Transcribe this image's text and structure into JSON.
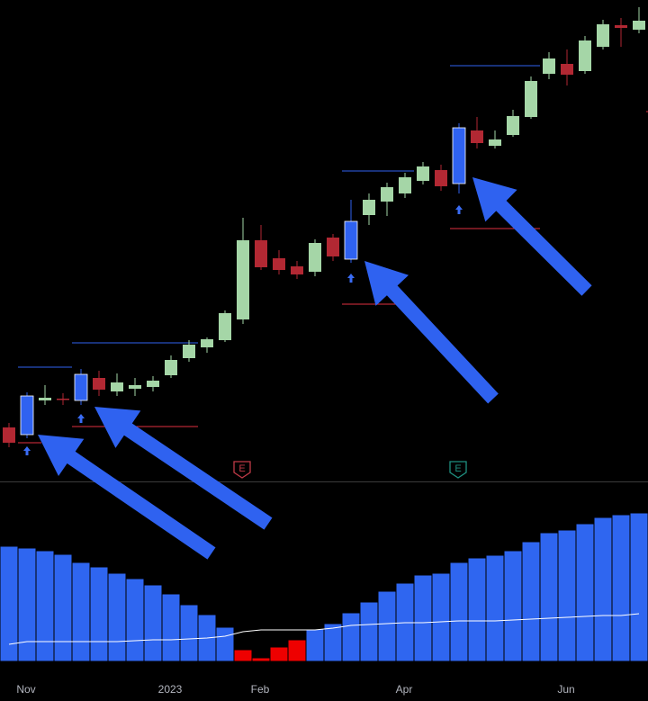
{
  "chart_data": [
    {
      "type": "candlestick",
      "open": [
        65,
        57,
        95,
        97,
        95,
        120,
        105,
        108,
        110,
        123,
        142,
        154,
        162,
        185,
        273,
        253,
        244,
        238,
        276,
        252,
        301,
        316,
        325,
        339,
        351,
        336,
        395,
        378,
        390,
        410,
        458,
        469,
        461,
        488,
        512,
        507
      ],
      "high": [
        70,
        104,
        112,
        103,
        130,
        128,
        125,
        120,
        122,
        145,
        162,
        165,
        195,
        298,
        290,
        262,
        250,
        274,
        280,
        318,
        325,
        337,
        348,
        360,
        357,
        403,
        410,
        395,
        418,
        455,
        482,
        485,
        500,
        518,
        520,
        532
      ],
      "low": [
        43,
        53,
        90,
        90,
        90,
        100,
        100,
        100,
        105,
        120,
        138,
        148,
        160,
        180,
        240,
        235,
        230,
        233,
        250,
        248,
        290,
        300,
        320,
        335,
        328,
        325,
        375,
        375,
        388,
        408,
        452,
        445,
        458,
        485,
        488,
        503
      ],
      "close": [
        48,
        100,
        98,
        96,
        124,
        107,
        115,
        112,
        117,
        140,
        157,
        163,
        192,
        273,
        243,
        240,
        235,
        270,
        255,
        294,
        318,
        332,
        343,
        355,
        333,
        398,
        381,
        385,
        411,
        450,
        475,
        457,
        495,
        513,
        509,
        517
      ],
      "colors": [
        "#b22833",
        "#2f62f0",
        "#a5d6a7",
        "#b22833",
        "#2f62f0",
        "#b22833",
        "#a5d6a7",
        "#a5d6a7",
        "#a5d6a7",
        "#a5d6a7",
        "#a5d6a7",
        "#a5d6a7",
        "#a5d6a7",
        "#a5d6a7",
        "#b22833",
        "#b22833",
        "#b22833",
        "#a5d6a7",
        "#b22833",
        "#2f62f0",
        "#a5d6a7",
        "#a5d6a7",
        "#a5d6a7",
        "#a5d6a7",
        "#b22833",
        "#2f62f0",
        "#b22833",
        "#a5d6a7",
        "#a5d6a7",
        "#a5d6a7",
        "#a5d6a7",
        "#b22833",
        "#a5d6a7",
        "#a5d6a7",
        "#b22833",
        "#a5d6a7"
      ],
      "levels": [
        {
          "color": "#2f62f0",
          "from": 0.5,
          "to": 3.5,
          "value": 132
        },
        {
          "color": "#2f62f0",
          "from": 3.5,
          "to": 10.5,
          "value": 159
        },
        {
          "color": "#e03040",
          "from": 0.5,
          "to": 1.8,
          "value": 48
        },
        {
          "color": "#e03040",
          "from": 3.5,
          "to": 10.5,
          "value": 66
        },
        {
          "color": "#2f62f0",
          "from": 18.5,
          "to": 22.5,
          "value": 350
        },
        {
          "color": "#e03040",
          "from": 18.5,
          "to": 21.5,
          "value": 202
        },
        {
          "color": "#2f62f0",
          "from": 24.5,
          "to": 29.5,
          "value": 467
        },
        {
          "color": "#e03040",
          "from": 24.5,
          "to": 29.5,
          "value": 286
        },
        {
          "color": "#e03040",
          "from": 35.4,
          "to": 35.5,
          "value": 416
        }
      ],
      "earnings": [
        {
          "label": "E",
          "color": "#c03a47"
        },
        {
          "label": "E",
          "color": "#1f9080"
        }
      ],
      "ylim": [
        0,
        540
      ]
    },
    {
      "type": "bar",
      "categories": [
        null,
        "Nov",
        null,
        null,
        null,
        null,
        null,
        null,
        null,
        "2023",
        null,
        null,
        null,
        null,
        "Feb",
        null,
        null,
        null,
        null,
        null,
        null,
        null,
        "Apr",
        null,
        null,
        null,
        null,
        null,
        null,
        null,
        null,
        "Jun",
        null,
        null,
        null,
        null
      ],
      "values": [
        128,
        126,
        123,
        119,
        110,
        105,
        98,
        92,
        85,
        75,
        63,
        52,
        38,
        13,
        4,
        16,
        24,
        36,
        42,
        54,
        66,
        78,
        87,
        96,
        98,
        110,
        115,
        118,
        123,
        133,
        143,
        146,
        153,
        160,
        163,
        165
      ],
      "colors": [
        "#2f66f0",
        "#2f66f0",
        "#2f66f0",
        "#2f66f0",
        "#2f66f0",
        "#2f66f0",
        "#2f66f0",
        "#2f66f0",
        "#2f66f0",
        "#2f66f0",
        "#2f66f0",
        "#2f66f0",
        "#2f66f0",
        "#ee0000",
        "#ee0000",
        "#ee0000",
        "#ee0000",
        "#2f66f0",
        "#2f66f0",
        "#2f66f0",
        "#2f66f0",
        "#2f66f0",
        "#2f66f0",
        "#2f66f0",
        "#2f66f0",
        "#2f66f0",
        "#2f66f0",
        "#2f66f0",
        "#2f66f0",
        "#2f66f0",
        "#2f66f0",
        "#2f66f0",
        "#2f66f0",
        "#2f66f0",
        "#2f66f0",
        "#2f66f0"
      ],
      "line": {
        "color": "#ffffff",
        "values": [
          19,
          22,
          22,
          22,
          22,
          22,
          22,
          23,
          24,
          24,
          25,
          26,
          28,
          33,
          35,
          35,
          35,
          35,
          37,
          40,
          41,
          42,
          43,
          43,
          44,
          45,
          45,
          45,
          46,
          47,
          48,
          49,
          50,
          51,
          51,
          53
        ]
      },
      "ylim": [
        0,
        200
      ]
    }
  ]
}
